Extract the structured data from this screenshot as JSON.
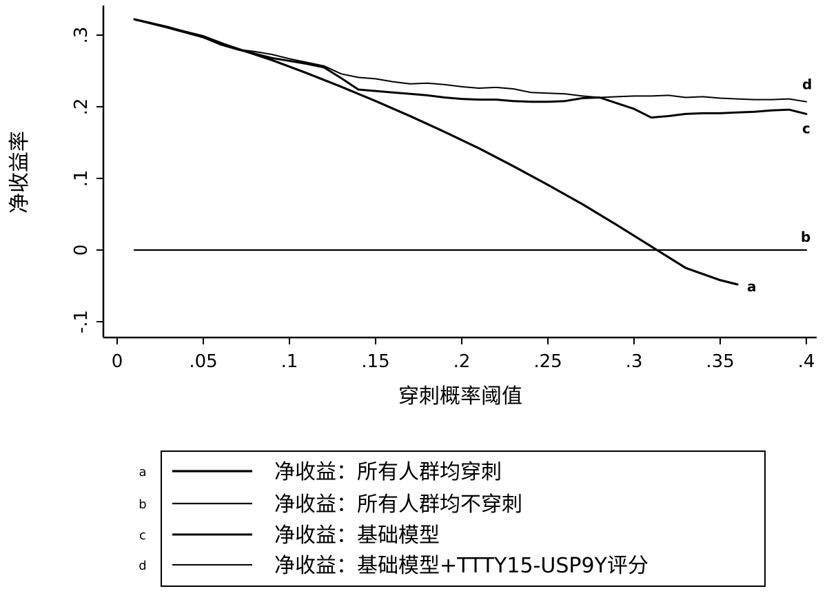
{
  "chart_data": {
    "type": "line",
    "xlabel": "穿刺概率阈值",
    "ylabel": "净收益率",
    "xlim": [
      0,
      0.4
    ],
    "ylim": [
      -0.1,
      0.33
    ],
    "x_ticks": [
      0,
      0.05,
      0.1,
      0.15,
      0.2,
      0.25,
      0.3,
      0.35,
      0.4
    ],
    "x_tick_labels": [
      "0",
      ".05",
      ".1",
      ".15",
      ".2",
      ".25",
      ".3",
      ".35",
      ".4"
    ],
    "y_ticks": [
      -0.1,
      0,
      0.1,
      0.2,
      0.3
    ],
    "y_tick_labels": [
      "-.1",
      "0",
      ".1",
      ".2",
      ".3"
    ],
    "grid": false,
    "legend_position": "bottom",
    "series": [
      {
        "key": "a",
        "name": "净收益：所有人群均穿刺",
        "stroke_width": 3.2,
        "x": [
          0.01,
          0.03,
          0.05,
          0.07,
          0.09,
          0.11,
          0.13,
          0.15,
          0.17,
          0.19,
          0.21,
          0.23,
          0.25,
          0.27,
          0.29,
          0.31,
          0.33,
          0.35,
          0.36
        ],
        "y": [
          0.322,
          0.311,
          0.297,
          0.281,
          0.265,
          0.247,
          0.228,
          0.208,
          0.187,
          0.165,
          0.142,
          0.117,
          0.091,
          0.064,
          0.035,
          0.005,
          -0.025,
          -0.042,
          -0.048
        ]
      },
      {
        "key": "b",
        "name": "净收益：所有人群均不穿刺",
        "stroke_width": 2.2,
        "x": [
          0.01,
          0.4
        ],
        "y": [
          0,
          0
        ]
      },
      {
        "key": "c",
        "name": "净收益：基础模型",
        "stroke_width": 3.0,
        "x": [
          0.01,
          0.03,
          0.05,
          0.06,
          0.07,
          0.08,
          0.09,
          0.1,
          0.11,
          0.12,
          0.13,
          0.14,
          0.15,
          0.16,
          0.17,
          0.18,
          0.19,
          0.2,
          0.21,
          0.22,
          0.23,
          0.24,
          0.25,
          0.26,
          0.27,
          0.28,
          0.29,
          0.3,
          0.31,
          0.32,
          0.33,
          0.34,
          0.35,
          0.36,
          0.37,
          0.38,
          0.39,
          0.4
        ],
        "y": [
          0.322,
          0.31,
          0.297,
          0.287,
          0.28,
          0.274,
          0.268,
          0.264,
          0.26,
          0.255,
          0.24,
          0.224,
          0.222,
          0.22,
          0.218,
          0.216,
          0.213,
          0.211,
          0.21,
          0.21,
          0.208,
          0.207,
          0.207,
          0.208,
          0.212,
          0.213,
          0.205,
          0.197,
          0.185,
          0.187,
          0.19,
          0.191,
          0.191,
          0.192,
          0.193,
          0.195,
          0.196,
          0.19
        ]
      },
      {
        "key": "d",
        "name": "净收益：基础模型+TTTY15-USP9Y评分",
        "stroke_width": 2.0,
        "x": [
          0.01,
          0.03,
          0.05,
          0.06,
          0.07,
          0.08,
          0.09,
          0.1,
          0.11,
          0.12,
          0.13,
          0.14,
          0.15,
          0.16,
          0.17,
          0.18,
          0.19,
          0.2,
          0.21,
          0.22,
          0.23,
          0.24,
          0.25,
          0.26,
          0.27,
          0.28,
          0.29,
          0.3,
          0.31,
          0.32,
          0.33,
          0.34,
          0.35,
          0.36,
          0.37,
          0.38,
          0.39,
          0.4
        ],
        "y": [
          0.322,
          0.311,
          0.299,
          0.29,
          0.28,
          0.277,
          0.273,
          0.267,
          0.262,
          0.257,
          0.246,
          0.241,
          0.239,
          0.235,
          0.232,
          0.233,
          0.231,
          0.228,
          0.226,
          0.227,
          0.225,
          0.22,
          0.219,
          0.218,
          0.215,
          0.213,
          0.214,
          0.215,
          0.215,
          0.216,
          0.213,
          0.214,
          0.212,
          0.211,
          0.21,
          0.21,
          0.211,
          0.207
        ]
      }
    ],
    "legend": [
      {
        "key": "a",
        "label": "净收益：所有人群均穿刺"
      },
      {
        "key": "b",
        "label": "净收益：所有人群均不穿刺"
      },
      {
        "key": "c",
        "label": "净收益：基础模型"
      },
      {
        "key": "d",
        "label": "净收益：基础模型+TTTY15-USP9Y评分"
      }
    ]
  }
}
